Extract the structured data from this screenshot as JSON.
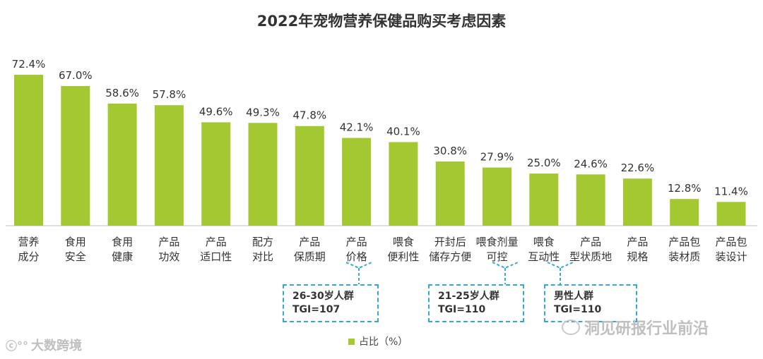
{
  "chart_data": {
    "type": "bar",
    "title": "2022年宠物营养保健品购买考虑因素",
    "categories": [
      [
        "营养",
        "成分"
      ],
      [
        "食用",
        "安全"
      ],
      [
        "食用",
        "健康"
      ],
      [
        "产品",
        "功效"
      ],
      [
        "产品",
        "适口性"
      ],
      [
        "配方",
        "对比"
      ],
      [
        "产品",
        "保质期"
      ],
      [
        "产品",
        "价格"
      ],
      [
        "喂食",
        "便利性"
      ],
      [
        "开封后",
        "储存方便"
      ],
      [
        "喂食剂量",
        "可控"
      ],
      [
        "喂食",
        "互动性"
      ],
      [
        "产品",
        "型状质地"
      ],
      [
        "产品",
        "规格"
      ],
      [
        "产品包",
        "装材质"
      ],
      [
        "产品包",
        "装设计"
      ]
    ],
    "series": [
      {
        "name": "占比（%）",
        "values": [
          72.4,
          67.0,
          58.6,
          57.8,
          49.6,
          49.3,
          47.8,
          42.1,
          40.1,
          30.8,
          27.9,
          25.0,
          24.6,
          22.6,
          12.8,
          11.4
        ],
        "labels": [
          "72.4%",
          "67.0%",
          "58.6%",
          "57.8%",
          "49.6%",
          "49.3%",
          "47.8%",
          "42.1%",
          "40.1%",
          "30.8%",
          "27.9%",
          "25.0%",
          "24.6%",
          "22.6%",
          "12.8%",
          "11.4%"
        ]
      }
    ],
    "ylim": [
      0,
      80
    ],
    "grid": false,
    "legend": "bottom",
    "bar_color": "#a4c831",
    "annotations": [
      {
        "category_index": 7,
        "line1": "26-30岁人群",
        "line2": "TGI=107"
      },
      {
        "category_index": 10,
        "line1": "21-25岁人群",
        "line2": "TGI=110"
      },
      {
        "category_index": 11,
        "line1": "男性人群",
        "line2": "TGI=110"
      }
    ]
  },
  "legend_label": "占比（%）",
  "watermarks": {
    "left": "大数跨境",
    "right": "洞见研报行业前沿"
  },
  "colors": {
    "accent": "#35a9d4",
    "bar": "#a4c831"
  }
}
